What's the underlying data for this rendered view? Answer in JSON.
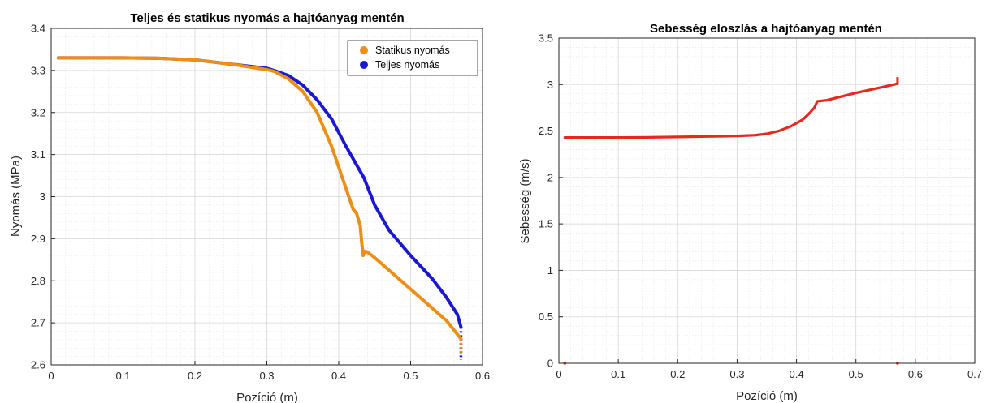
{
  "chart_data": [
    {
      "type": "scatter",
      "title": "Teljes és statikus nyomás a hajtóanyag mentén",
      "xlabel": "Pozíció (m)",
      "ylabel": "Nyomás (MPa)",
      "xlim": [
        0,
        0.6
      ],
      "ylim": [
        2.6,
        3.4
      ],
      "xticks": [
        0,
        0.1,
        0.2,
        0.3,
        0.4,
        0.5,
        0.6
      ],
      "xtick_labels": [
        "0",
        "0.1",
        "0.2",
        "0.3",
        "0.4",
        "0.5",
        "0.6"
      ],
      "yticks": [
        2.6,
        2.7,
        2.8,
        2.9,
        3.0,
        3.1,
        3.2,
        3.3,
        3.4
      ],
      "ytick_labels": [
        "2.6",
        "2.7",
        "2.8",
        "2.9",
        "3",
        "3.1",
        "3.2",
        "3.3",
        "3.4"
      ],
      "grid": true,
      "minor_grid": true,
      "legend_position": "top-right",
      "series": [
        {
          "name": "Statikus nyomás",
          "color": "#ED8E17",
          "x": [
            0.01,
            0.05,
            0.1,
            0.15,
            0.2,
            0.25,
            0.3,
            0.31,
            0.33,
            0.35,
            0.37,
            0.39,
            0.41,
            0.42,
            0.425,
            0.43,
            0.432,
            0.434,
            0.436,
            0.44,
            0.45,
            0.47,
            0.5,
            0.53,
            0.55,
            0.57
          ],
          "y": [
            3.33,
            3.33,
            3.33,
            3.329,
            3.325,
            3.315,
            3.302,
            3.298,
            3.28,
            3.25,
            3.2,
            3.12,
            3.02,
            2.97,
            2.96,
            2.93,
            2.89,
            2.86,
            2.87,
            2.868,
            2.855,
            2.825,
            2.78,
            2.735,
            2.705,
            2.662
          ]
        },
        {
          "name": "Teljes nyomás",
          "color": "#1A18D1",
          "x": [
            0.01,
            0.05,
            0.1,
            0.15,
            0.2,
            0.25,
            0.3,
            0.31,
            0.33,
            0.35,
            0.37,
            0.39,
            0.41,
            0.43,
            0.435,
            0.45,
            0.47,
            0.5,
            0.53,
            0.55,
            0.565,
            0.57
          ],
          "y": [
            3.33,
            3.33,
            3.33,
            3.329,
            3.325,
            3.315,
            3.305,
            3.3,
            3.288,
            3.265,
            3.23,
            3.185,
            3.12,
            3.06,
            3.045,
            2.98,
            2.92,
            2.86,
            2.805,
            2.76,
            2.72,
            2.69
          ]
        }
      ],
      "annotations": "tail near x=0.57 of both series drops vertically toward 2.60"
    },
    {
      "type": "line",
      "title": "Sebesség eloszlás a hajtóanyag mentén",
      "xlabel": "Pozíció (m)",
      "ylabel": "Sebesség (m/s)",
      "xlim": [
        0,
        0.7
      ],
      "ylim": [
        0,
        3.5
      ],
      "xticks": [
        0,
        0.1,
        0.2,
        0.3,
        0.4,
        0.5,
        0.6,
        0.7
      ],
      "xtick_labels": [
        "0",
        "0.1",
        "0.2",
        "0.3",
        "0.4",
        "0.5",
        "0.6",
        "0.7"
      ],
      "yticks": [
        0,
        0.5,
        1,
        1.5,
        2,
        2.5,
        3,
        3.5
      ],
      "ytick_labels": [
        "0",
        "0.5",
        "1",
        "1.5",
        "2",
        "2.5",
        "3",
        "3.5"
      ],
      "grid": true,
      "minor_grid": true,
      "series": [
        {
          "color": "#E8281E",
          "x": [
            0.01,
            0.05,
            0.1,
            0.15,
            0.2,
            0.25,
            0.3,
            0.33,
            0.35,
            0.37,
            0.39,
            0.41,
            0.42,
            0.43,
            0.435,
            0.45,
            0.5,
            0.55,
            0.57
          ],
          "y": [
            2.43,
            2.43,
            2.43,
            2.432,
            2.436,
            2.441,
            2.447,
            2.455,
            2.47,
            2.5,
            2.55,
            2.62,
            2.68,
            2.75,
            2.82,
            2.83,
            2.91,
            2.98,
            3.01
          ]
        }
      ],
      "annotations": "small red marks at y=0 near x=0.01 and x=0.57; short vertical spike at x=0.57 up to about 3.08"
    }
  ]
}
